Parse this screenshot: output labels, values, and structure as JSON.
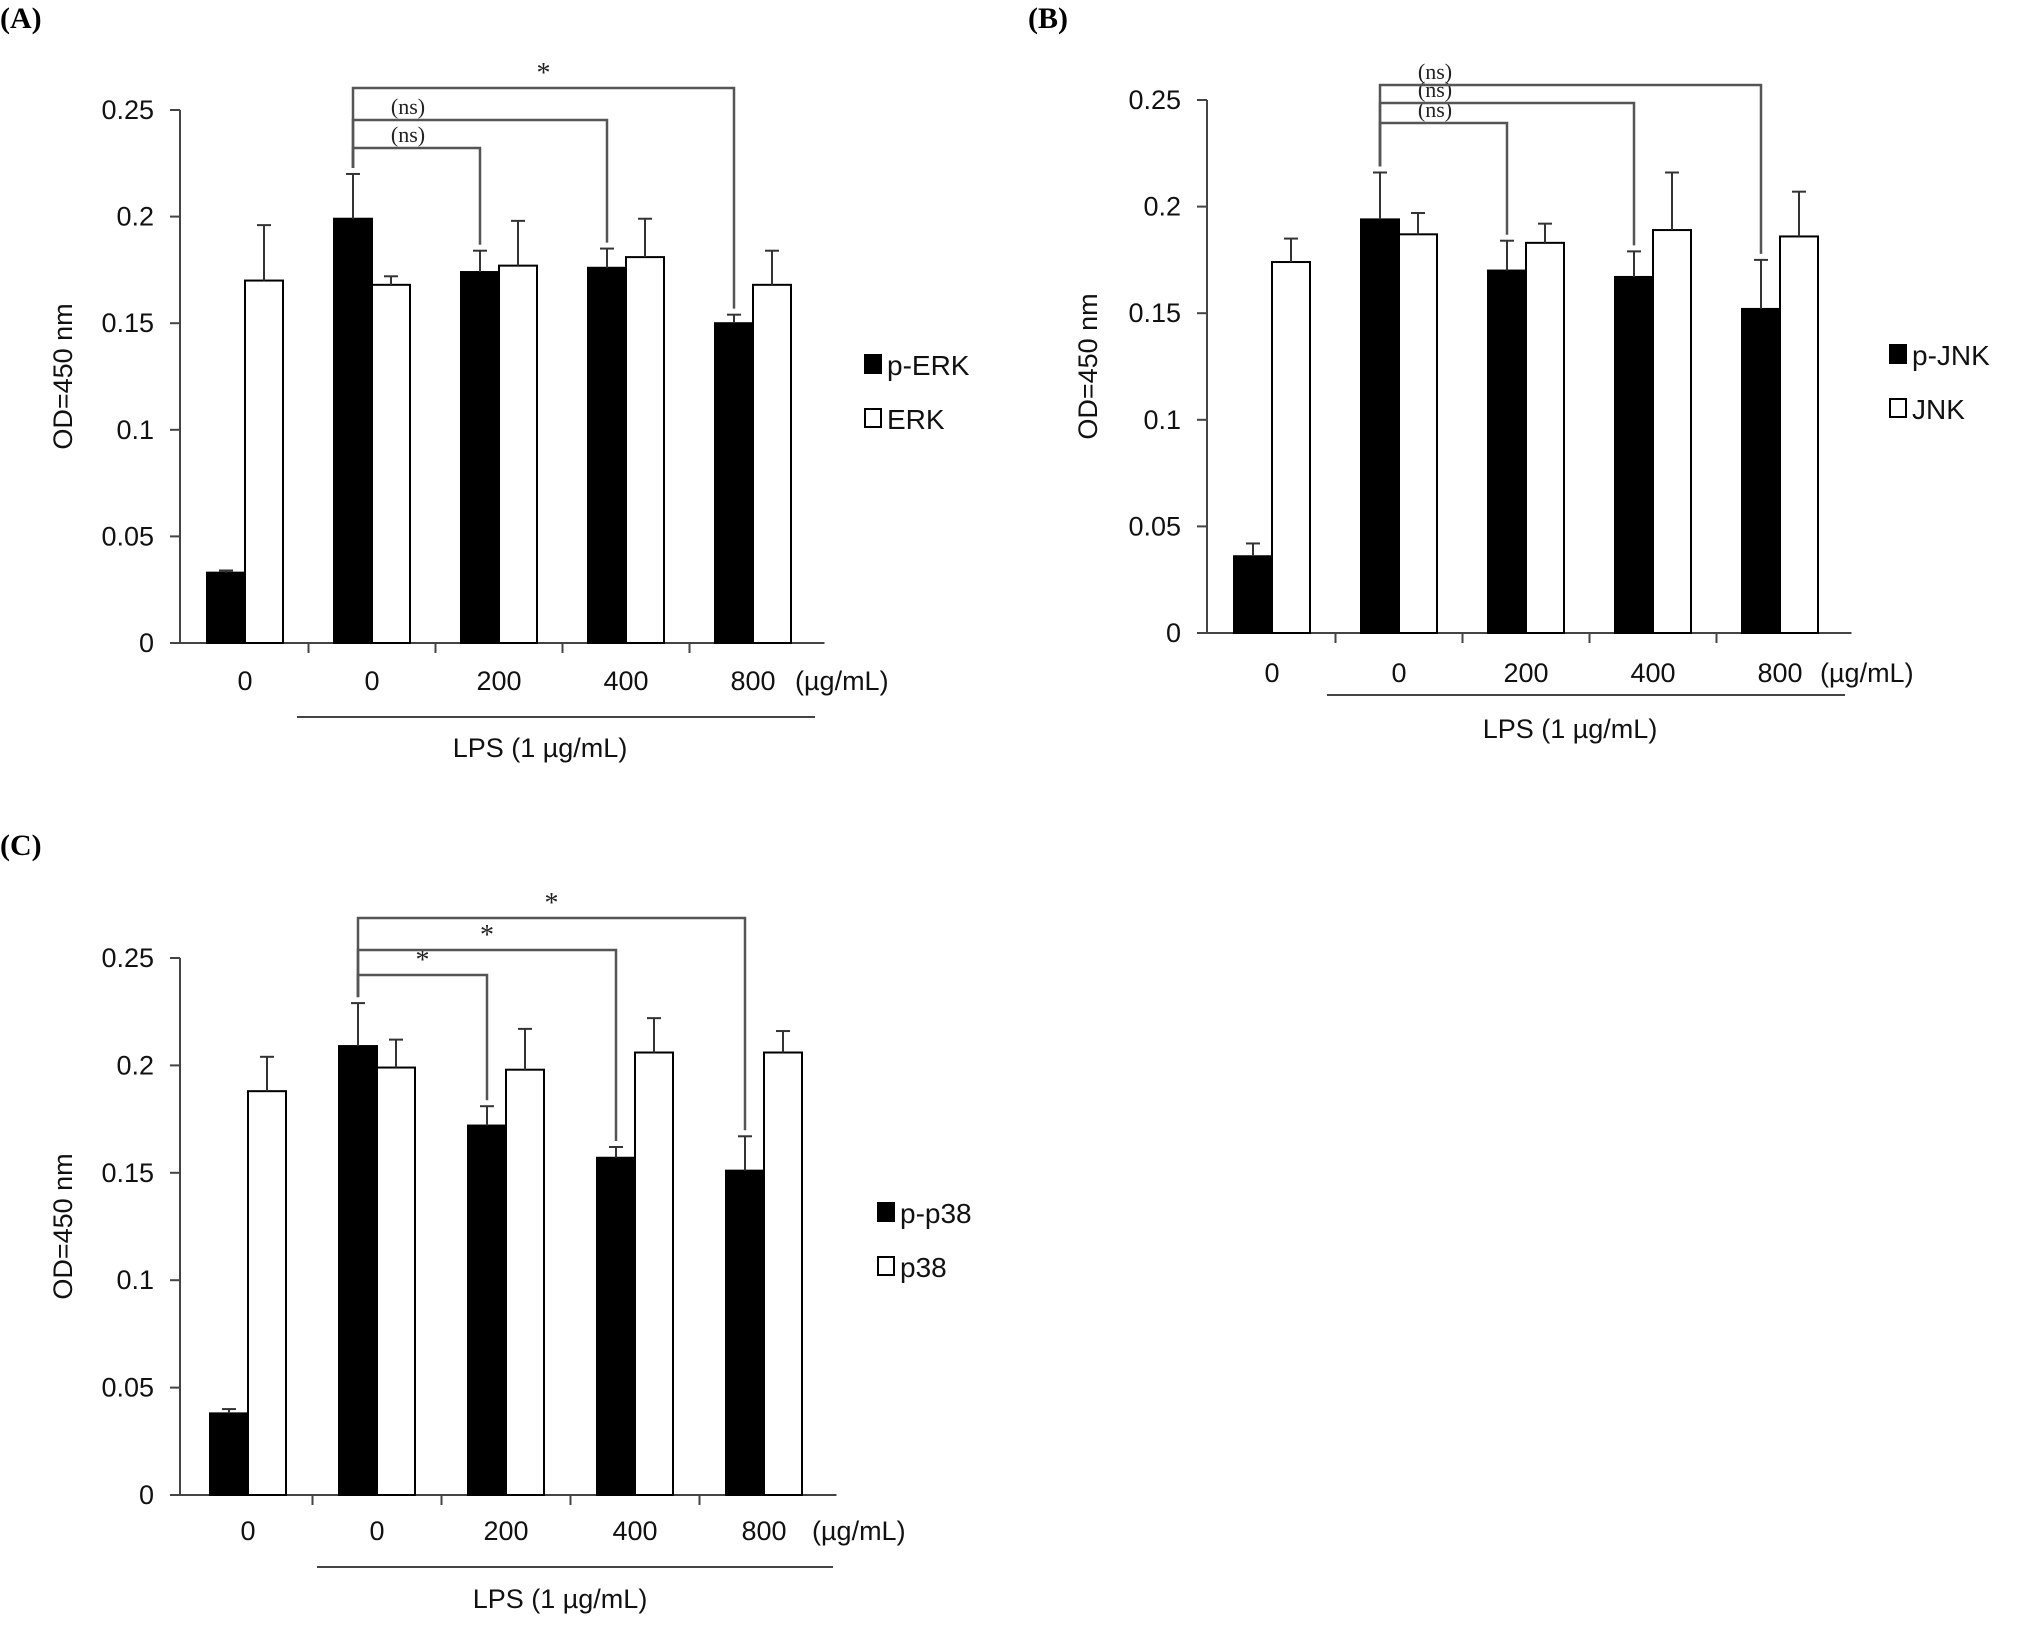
{
  "chart_data": [
    {
      "panel": "(A)",
      "type": "bar",
      "categories": [
        "0",
        "0",
        "200",
        "400",
        "800"
      ],
      "unit_label": "(µg/mL)",
      "treatment_label": "LPS (1 µg/mL)",
      "ylabel": "OD=450 nm",
      "ylim": [
        0,
        0.25
      ],
      "yticks": [
        "0",
        "0.05",
        "0.1",
        "0.15",
        "0.2",
        "0.25"
      ],
      "legend_position": "right",
      "series": [
        {
          "name": "p-ERK",
          "fill": "#000000",
          "values": [
            0.033,
            0.199,
            0.174,
            0.176,
            0.15
          ],
          "errors": [
            0.001,
            0.021,
            0.01,
            0.009,
            0.004
          ]
        },
        {
          "name": "ERK",
          "fill": "#ffffff",
          "values": [
            0.17,
            0.168,
            0.177,
            0.181,
            0.168
          ],
          "errors": [
            0.026,
            0.004,
            0.021,
            0.018,
            0.016
          ]
        }
      ],
      "comparisons": [
        {
          "from": 1,
          "to": 2,
          "label": "(ns)"
        },
        {
          "from": 1,
          "to": 3,
          "label": "(ns)"
        },
        {
          "from": 1,
          "to": 4,
          "label": "*"
        }
      ]
    },
    {
      "panel": "(B)",
      "type": "bar",
      "categories": [
        "0",
        "0",
        "200",
        "400",
        "800"
      ],
      "unit_label": "(µg/mL)",
      "treatment_label": "LPS (1 µg/mL)",
      "ylabel": "OD=450 nm",
      "ylim": [
        0,
        0.25
      ],
      "yticks": [
        "0",
        "0.05",
        "0.1",
        "0.15",
        "0.2",
        "0.25"
      ],
      "legend_position": "right",
      "series": [
        {
          "name": "p-JNK",
          "fill": "#000000",
          "values": [
            0.036,
            0.194,
            0.17,
            0.167,
            0.152
          ],
          "errors": [
            0.006,
            0.022,
            0.014,
            0.012,
            0.023
          ]
        },
        {
          "name": "JNK",
          "fill": "#ffffff",
          "values": [
            0.174,
            0.187,
            0.183,
            0.189,
            0.186
          ],
          "errors": [
            0.011,
            0.01,
            0.009,
            0.027,
            0.021
          ]
        }
      ],
      "comparisons": [
        {
          "from": 1,
          "to": 2,
          "label": "(ns)"
        },
        {
          "from": 1,
          "to": 3,
          "label": "(ns)"
        },
        {
          "from": 1,
          "to": 4,
          "label": "(ns)"
        }
      ]
    },
    {
      "panel": "(C)",
      "type": "bar",
      "categories": [
        "0",
        "0",
        "200",
        "400",
        "800"
      ],
      "unit_label": "(µg/mL)",
      "treatment_label": "LPS (1 µg/mL)",
      "ylabel": "OD=450 nm",
      "ylim": [
        0,
        0.25
      ],
      "yticks": [
        "0",
        "0.05",
        "0.1",
        "0.15",
        "0.2",
        "0.25"
      ],
      "legend_position": "right",
      "series": [
        {
          "name": "p-p38",
          "fill": "#000000",
          "values": [
            0.038,
            0.209,
            0.172,
            0.157,
            0.151
          ],
          "errors": [
            0.002,
            0.02,
            0.009,
            0.005,
            0.016
          ]
        },
        {
          "name": "p38",
          "fill": "#ffffff",
          "values": [
            0.188,
            0.199,
            0.198,
            0.206,
            0.206
          ],
          "errors": [
            0.016,
            0.013,
            0.019,
            0.016,
            0.01
          ]
        }
      ],
      "comparisons": [
        {
          "from": 1,
          "to": 2,
          "label": "*"
        },
        {
          "from": 1,
          "to": 3,
          "label": "*"
        },
        {
          "from": 1,
          "to": 4,
          "label": "*"
        }
      ]
    }
  ]
}
